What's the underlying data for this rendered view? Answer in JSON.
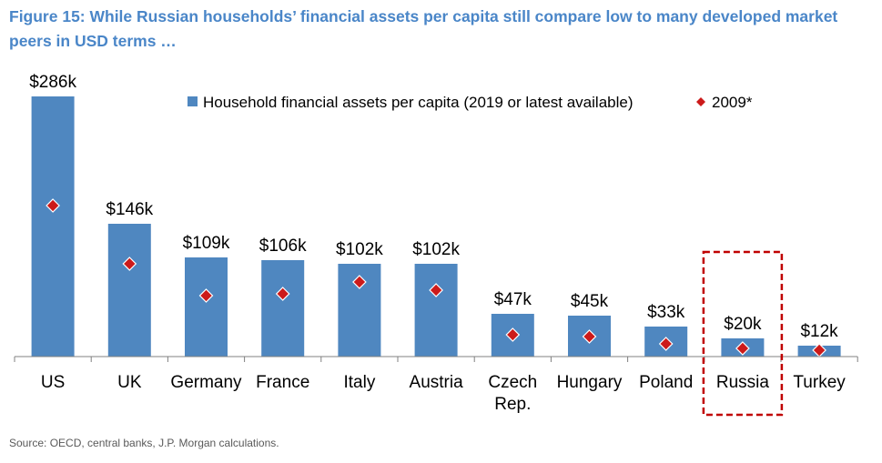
{
  "title": "Figure 15: While Russian households’ financial assets per capita still compare low to many developed market peers in USD terms …",
  "source": "Source: OECD, central banks, J.P. Morgan calculations.",
  "colors": {
    "bar": "#4f87c0",
    "marker": "#cc1a1a",
    "title": "#4a86c8",
    "highlight": "#c00000"
  },
  "chart_data": {
    "type": "bar",
    "categories": [
      "US",
      "UK",
      "Germany",
      "France",
      "Italy",
      "Austria",
      "Czech Rep.",
      "Hungary",
      "Poland",
      "Russia",
      "Turkey"
    ],
    "category_lines": [
      [
        "US"
      ],
      [
        "UK"
      ],
      [
        "Germany"
      ],
      [
        "France"
      ],
      [
        "Italy"
      ],
      [
        "Austria"
      ],
      [
        "Czech",
        "Rep."
      ],
      [
        "Hungary"
      ],
      [
        "Poland"
      ],
      [
        "Russia"
      ],
      [
        "Turkey"
      ]
    ],
    "series": [
      {
        "name": "Household financial assets per capita (2019 or latest available)",
        "type": "bar",
        "values": [
          286,
          146,
          109,
          106,
          102,
          102,
          47,
          45,
          33,
          20,
          12
        ]
      },
      {
        "name": "2009*",
        "type": "marker",
        "values": [
          166,
          102,
          67,
          69,
          82,
          73,
          24,
          22,
          14,
          9,
          7
        ]
      }
    ],
    "data_labels": [
      "$286k",
      "$146k",
      "$109k",
      "$106k",
      "$102k",
      "$102k",
      "$47k",
      "$45k",
      "$33k",
      "$20k",
      "$12k"
    ],
    "unit": "USD thousands",
    "ylim": [
      0,
      300
    ],
    "grid": false,
    "legend_position": "top",
    "highlighted_category": "Russia"
  }
}
